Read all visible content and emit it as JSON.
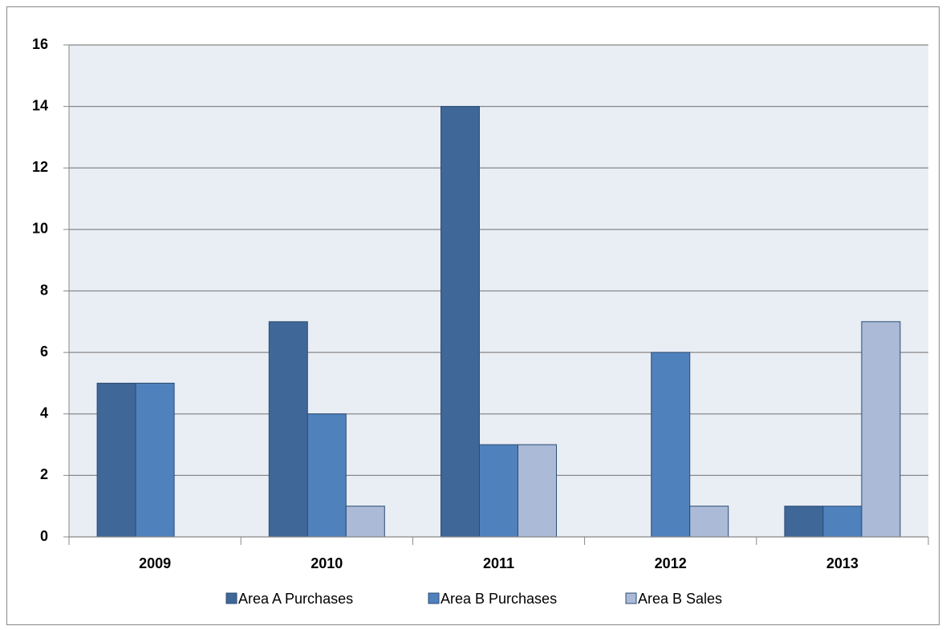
{
  "chart_data": {
    "type": "bar",
    "categories": [
      "2009",
      "2010",
      "2011",
      "2012",
      "2013"
    ],
    "series": [
      {
        "name": "Area A Purchases",
        "color": "#3f6797",
        "values": [
          5,
          7,
          14,
          0,
          1
        ]
      },
      {
        "name": "Area B Purchases",
        "color": "#4f81bd",
        "values": [
          5,
          4,
          3,
          6,
          1
        ]
      },
      {
        "name": "Area B Sales",
        "color": "#aabad7",
        "values": [
          0,
          1,
          3,
          1,
          7
        ]
      }
    ],
    "ylim": [
      0,
      16
    ],
    "yticks": [
      0,
      2,
      4,
      6,
      8,
      10,
      12,
      14,
      16
    ],
    "grid": true,
    "legend": "bottom"
  }
}
